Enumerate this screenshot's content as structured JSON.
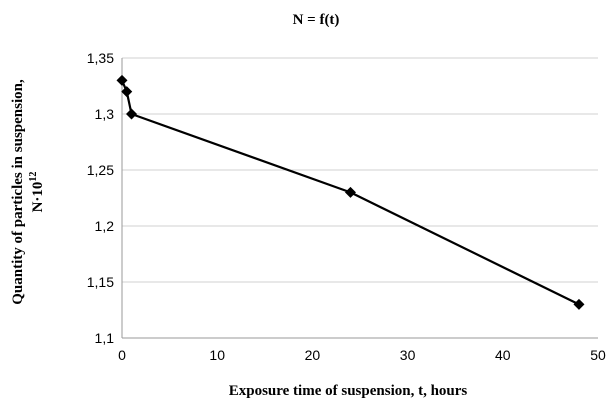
{
  "chart_data": {
    "type": "line",
    "title": "N = f(t)",
    "xlabel": "Exposure  time of suspension,  t, hours",
    "ylabel_line1": "Quantity  of particles in suspension,",
    "ylabel_line2_base": "N·10",
    "ylabel_line2_exp": "12",
    "xlim": [
      0,
      50
    ],
    "ylim": [
      1.1,
      1.35
    ],
    "x_ticks": [
      0,
      10,
      20,
      30,
      40,
      50
    ],
    "y_ticks": [
      1.1,
      1.15,
      1.2,
      1.25,
      1.3,
      1.35
    ],
    "x_tick_labels": [
      "0",
      "10",
      "20",
      "30",
      "40",
      "50"
    ],
    "y_tick_labels": [
      "1,1",
      "1,15",
      "1,2",
      "1,25",
      "1,3",
      "1,35"
    ],
    "grid": true,
    "series": [
      {
        "marker": "diamond",
        "color": "#000000",
        "x": [
          0,
          0.5,
          1,
          24,
          48
        ],
        "y": [
          1.33,
          1.32,
          1.3,
          1.23,
          1.13
        ]
      }
    ]
  }
}
